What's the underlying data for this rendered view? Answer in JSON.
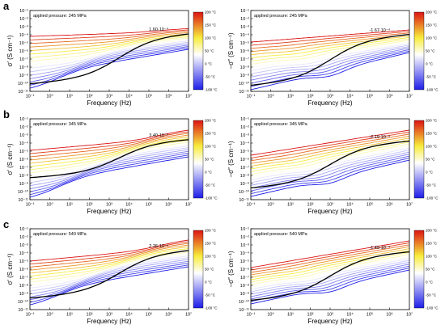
{
  "colorbar": {
    "labels": [
      "200 °C",
      "150 °C",
      "100 °C",
      "50 °C",
      "0 °C",
      "-50 °C",
      "-100 °C"
    ],
    "stops": [
      "#dc1414",
      "#f7ec3c",
      "#ffffff",
      "#1e1ee8"
    ]
  },
  "axes": {
    "x_ticks": [
      "10⁻¹",
      "10⁰",
      "10¹",
      "10²",
      "10³",
      "10⁴",
      "10⁵",
      "10⁶",
      "10⁷"
    ],
    "y_ticks": [
      "10⁻¹¹",
      "10⁻¹⁰",
      "10⁻⁹",
      "10⁻⁸",
      "10⁻⁷",
      "10⁻⁶",
      "10⁻⁵",
      "10⁻⁴",
      "10⁻³",
      "10⁻²",
      "10⁻¹"
    ],
    "xlabel": "Frequency (Hz)"
  },
  "chart_data": [
    {
      "row_letter": "a",
      "type": "line",
      "ylabel": "σ′ (S cm⁻¹)",
      "pressure": "applied pressure: 245 MPa",
      "annotation": "1.60·10⁻⁴",
      "hi_low": -4.2,
      "hi_high": -3.2,
      "lo_low": -10.8,
      "lo_high": -5.8,
      "curve_shape": "real",
      "xlim": [
        -1,
        7
      ],
      "ylim": [
        -11,
        -1
      ],
      "x_scale": "log",
      "y_scale": "log",
      "color_scale_range": [
        -100,
        200
      ],
      "black_curve_ends": [
        -10.1,
        -3.8
      ]
    },
    {
      "row_letter": "a",
      "type": "line",
      "ylabel": "−σ″ (S cm⁻¹)",
      "pressure": "applied pressure: 245 MPa",
      "annotation": "-1.67·10⁻⁴",
      "hi_low": -4.9,
      "hi_high": -3.4,
      "lo_low": -10.8,
      "lo_high": -6.2,
      "curve_shape": "imag",
      "xlim": [
        -1,
        7
      ],
      "ylim": [
        -11,
        -1
      ],
      "x_scale": "log",
      "y_scale": "log",
      "color_scale_range": [
        -100,
        200
      ],
      "black_curve_ends": [
        -10.3,
        -3.9
      ]
    },
    {
      "row_letter": "b",
      "type": "line",
      "ylabel": "σ′ (S cm⁻¹)",
      "pressure": "applied pressure: 345 MPa",
      "annotation": "3.40·10⁻⁴",
      "hi_low": -4.9,
      "hi_high": -2.3,
      "lo_low": -10.9,
      "lo_high": -5.7,
      "curve_shape": "real",
      "xlim": [
        -1,
        7
      ],
      "ylim": [
        -11,
        -1
      ],
      "x_scale": "log",
      "y_scale": "log",
      "color_scale_range": [
        -100,
        200
      ],
      "black_curve_ends": [
        -8.3,
        -3.5
      ]
    },
    {
      "row_letter": "b",
      "type": "line",
      "ylabel": "−σ″ (S cm⁻¹)",
      "pressure": "applied pressure: 345 MPa",
      "annotation": "-2.19·10⁻⁴",
      "hi_low": -5.5,
      "hi_high": -2.4,
      "lo_low": -10.6,
      "lo_high": -6.1,
      "curve_shape": "imag",
      "xlim": [
        -1,
        7
      ],
      "ylim": [
        -11,
        -1
      ],
      "x_scale": "log",
      "y_scale": "log",
      "color_scale_range": [
        -100,
        200
      ],
      "black_curve_ends": [
        -9.6,
        -3.7
      ]
    },
    {
      "row_letter": "c",
      "type": "line",
      "ylabel": "σ′ (S cm⁻¹)",
      "pressure": "applied pressure: 540 MPa",
      "annotation": "2.26·10⁻⁴",
      "hi_low": -5.0,
      "hi_high": -2.3,
      "lo_low": -10.6,
      "lo_high": -5.7,
      "curve_shape": "real",
      "xlim": [
        -1,
        7
      ],
      "ylim": [
        -11,
        -1
      ],
      "x_scale": "log",
      "y_scale": "log",
      "color_scale_range": [
        -100,
        200
      ],
      "black_curve_ends": [
        -9.6,
        -3.6
      ]
    },
    {
      "row_letter": "c",
      "type": "line",
      "ylabel": "−σ″ (S cm⁻¹)",
      "pressure": "applied pressure: 540 MPa",
      "annotation": "-1.49·10⁻⁴",
      "hi_low": -5.8,
      "hi_high": -2.5,
      "lo_low": -10.3,
      "lo_high": -6.1,
      "curve_shape": "imag",
      "xlim": [
        -1,
        7
      ],
      "ylim": [
        -11,
        -1
      ],
      "x_scale": "log",
      "y_scale": "log",
      "color_scale_range": [
        -100,
        200
      ],
      "black_curve_ends": [
        -9.9,
        -3.8
      ]
    }
  ]
}
